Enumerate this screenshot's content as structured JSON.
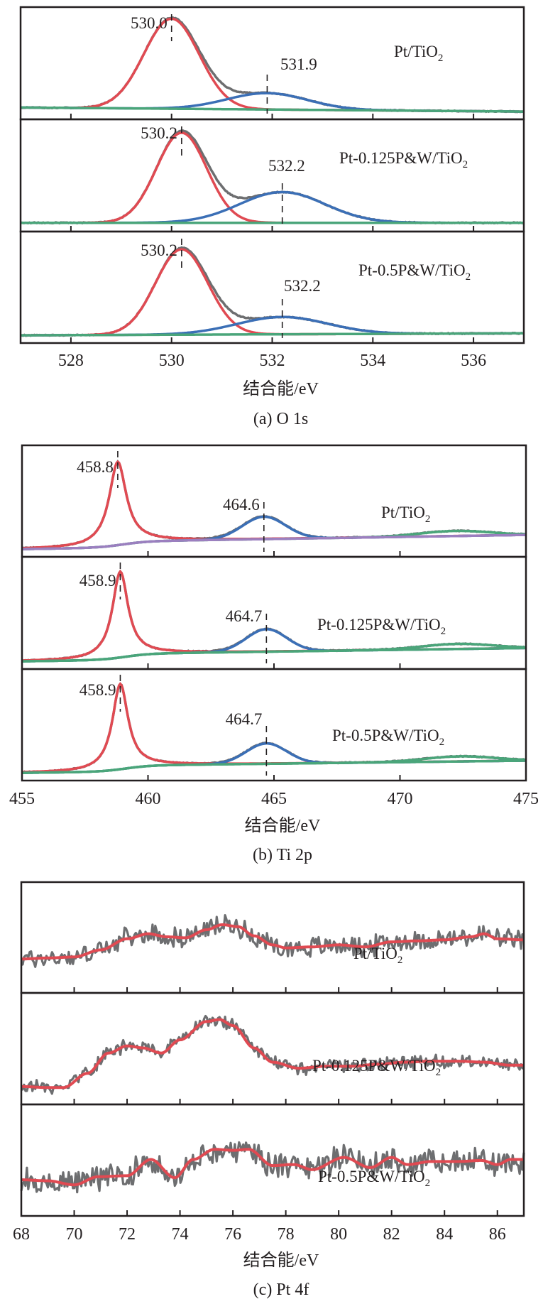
{
  "chart_data": [
    {
      "type": "line",
      "id": "o1s",
      "caption": "(a) O 1s",
      "xlabel": "结合能/eV",
      "ylabel": "",
      "xlim": [
        527,
        537
      ],
      "xticks": [
        528,
        530,
        532,
        534,
        536
      ],
      "tick_labels": [
        "528",
        "530",
        "532",
        "534",
        "536"
      ],
      "grid": false,
      "colors": {
        "raw": "#6d6e70",
        "peak1": "#e04a52",
        "peak2": "#3b6fb6",
        "background": "#4aa57a"
      },
      "subplots": [
        {
          "sample": "Pt/TiO",
          "sample_sub": "2",
          "peaks": [
            {
              "name": "peak1",
              "center": 530.0,
              "height": 0.88,
              "width": 0.55,
              "shape": "gauss",
              "label": "530.0"
            },
            {
              "name": "peak2",
              "center": 531.9,
              "height": 0.16,
              "width": 0.8,
              "shape": "gauss",
              "label": "531.9"
            }
          ],
          "background": {
            "start": 0.06,
            "end": 0.02
          }
        },
        {
          "sample": "Pt-0.125P&W/TiO",
          "sample_sub": "2",
          "peaks": [
            {
              "name": "peak1",
              "center": 530.2,
              "height": 0.88,
              "width": 0.5,
              "shape": "gauss",
              "label": "530.2"
            },
            {
              "name": "peak2",
              "center": 532.2,
              "height": 0.3,
              "width": 0.85,
              "shape": "gauss",
              "label": "532.2"
            }
          ],
          "background": {
            "start": 0.03,
            "end": 0.03
          }
        },
        {
          "sample": "Pt-0.5P&W/TiO",
          "sample_sub": "2",
          "peaks": [
            {
              "name": "peak1",
              "center": 530.2,
              "height": 0.84,
              "width": 0.52,
              "shape": "gauss",
              "label": "530.2"
            },
            {
              "name": "peak2",
              "center": 532.2,
              "height": 0.17,
              "width": 0.9,
              "shape": "gauss",
              "label": "532.2"
            }
          ],
          "background": {
            "start": 0.02,
            "end": 0.04
          }
        }
      ]
    },
    {
      "type": "line",
      "id": "ti2p",
      "caption": "(b) Ti 2p",
      "xlabel": "结合能/eV",
      "ylabel": "",
      "xlim": [
        455,
        475
      ],
      "xticks": [
        455,
        460,
        465,
        470,
        475
      ],
      "tick_labels": [
        "455",
        "460",
        "465",
        "470",
        "475"
      ],
      "grid": false,
      "colors": {
        "raw": "#6d6e70",
        "peak1": "#e04a52",
        "peak2": "#3b6fb6",
        "satellite": "#4aa57a",
        "background_first": "#9b7fbf",
        "background": "#4aa57a"
      },
      "subplots": [
        {
          "sample": "Pt/TiO",
          "sample_sub": "2",
          "peaks": [
            {
              "name": "peak1",
              "center": 458.8,
              "height": 0.82,
              "width": 0.55,
              "shape": "lorentz",
              "label": "458.8"
            },
            {
              "name": "peak2",
              "center": 464.6,
              "height": 0.22,
              "width": 0.85,
              "shape": "gauss",
              "label": "464.6"
            },
            {
              "name": "satellite",
              "center": 472.2,
              "height": 0.05,
              "width": 1.4,
              "shape": "gauss",
              "label": ""
            }
          ],
          "background": {
            "start": 0.02,
            "step": 0.06,
            "end": 0.16
          }
        },
        {
          "sample": "Pt-0.125P&W/TiO",
          "sample_sub": "2",
          "peaks": [
            {
              "name": "peak1",
              "center": 458.9,
              "height": 0.84,
              "width": 0.5,
              "shape": "lorentz",
              "label": "458.9"
            },
            {
              "name": "peak2",
              "center": 464.7,
              "height": 0.22,
              "width": 0.8,
              "shape": "gauss",
              "label": "464.7"
            },
            {
              "name": "satellite",
              "center": 472.3,
              "height": 0.05,
              "width": 1.4,
              "shape": "gauss",
              "label": ""
            }
          ],
          "background": {
            "start": 0.02,
            "step": 0.06,
            "end": 0.15
          }
        },
        {
          "sample": "Pt-0.5P&W/TiO",
          "sample_sub": "2",
          "peaks": [
            {
              "name": "peak1",
              "center": 458.9,
              "height": 0.84,
              "width": 0.5,
              "shape": "lorentz",
              "label": "458.9"
            },
            {
              "name": "peak2",
              "center": 464.7,
              "height": 0.2,
              "width": 0.8,
              "shape": "gauss",
              "label": "464.7"
            },
            {
              "name": "satellite",
              "center": 472.4,
              "height": 0.05,
              "width": 1.4,
              "shape": "gauss",
              "label": ""
            }
          ],
          "background": {
            "start": 0.02,
            "step": 0.06,
            "end": 0.14
          }
        }
      ]
    },
    {
      "type": "line",
      "id": "pt4f",
      "caption": "(c) Pt 4f",
      "xlabel": "结合能/eV",
      "ylabel": "",
      "xlim": [
        68,
        87
      ],
      "xticks": [
        68,
        70,
        72,
        74,
        76,
        78,
        80,
        82,
        84,
        86
      ],
      "tick_labels": [
        "68",
        "70",
        "72",
        "74",
        "76",
        "78",
        "80",
        "82",
        "84",
        "86"
      ],
      "grid": false,
      "colors": {
        "raw": "#6d6e70",
        "fit": "#e04a52"
      },
      "subplots": [
        {
          "sample": "Pt/TiO",
          "sample_sub": "2",
          "fit_x": [
            68,
            69,
            70,
            71,
            72,
            72.8,
            73.5,
            74.2,
            75,
            75.6,
            76.2,
            76.8,
            77.5,
            78,
            79,
            80,
            81,
            82,
            83,
            84,
            85,
            85.5,
            86,
            87
          ],
          "fit_y": [
            0.28,
            0.29,
            0.3,
            0.37,
            0.48,
            0.53,
            0.5,
            0.49,
            0.57,
            0.62,
            0.6,
            0.51,
            0.42,
            0.39,
            0.4,
            0.42,
            0.4,
            0.45,
            0.46,
            0.47,
            0.5,
            0.53,
            0.48,
            0.47
          ],
          "noise": 0.055
        },
        {
          "sample": "Pt-0.125P&W/TiO",
          "sample_sub": "2",
          "fit_x": [
            68,
            69,
            69.6,
            70.5,
            71.3,
            72,
            72.6,
            73.3,
            74,
            75,
            75.5,
            76,
            76.8,
            77.5,
            78.5,
            79.5,
            80.5,
            81.5,
            82.5,
            83.5,
            84.5,
            85.5,
            86.5,
            87
          ],
          "fit_y": [
            0.12,
            0.11,
            0.11,
            0.25,
            0.45,
            0.52,
            0.5,
            0.45,
            0.58,
            0.76,
            0.78,
            0.72,
            0.5,
            0.36,
            0.3,
            0.32,
            0.32,
            0.34,
            0.36,
            0.37,
            0.37,
            0.36,
            0.33,
            0.33
          ],
          "noise": 0.035
        },
        {
          "sample": "Pt-0.5P&W/TiO",
          "sample_sub": "2",
          "fit_x": [
            68,
            69,
            70,
            70.9,
            72,
            72.9,
            73.8,
            74.5,
            75.3,
            76,
            76.6,
            77.5,
            78.3,
            79,
            80.2,
            81.2,
            82,
            82.6,
            83.5,
            84.5,
            85.4,
            86,
            86.5,
            87
          ],
          "fit_y": [
            0.3,
            0.29,
            0.25,
            0.33,
            0.34,
            0.5,
            0.32,
            0.5,
            0.6,
            0.59,
            0.6,
            0.44,
            0.45,
            0.4,
            0.52,
            0.42,
            0.52,
            0.45,
            0.48,
            0.48,
            0.49,
            0.45,
            0.5,
            0.5
          ],
          "noise": 0.07
        }
      ]
    }
  ]
}
